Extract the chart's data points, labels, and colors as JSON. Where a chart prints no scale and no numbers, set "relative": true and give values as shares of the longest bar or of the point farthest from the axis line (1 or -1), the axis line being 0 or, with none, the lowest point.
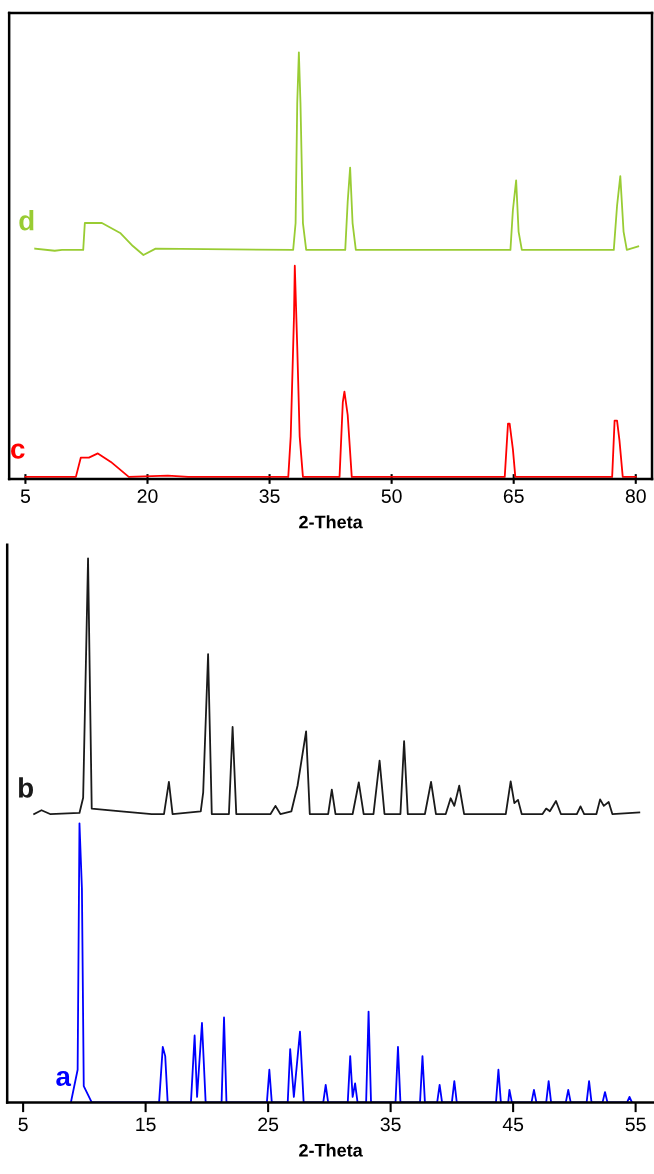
{
  "chart_data": [
    {
      "type": "line",
      "relative": true,
      "xlabel": "2-Theta",
      "xlim": [
        3,
        82
      ],
      "xticks": [
        5,
        20,
        35,
        50,
        65,
        80
      ],
      "series": [
        {
          "name": "d",
          "color": "#99cc33",
          "x": [
            6.2,
            8.6,
            9.5,
            12.1,
            12.3,
            14.4,
            16.7,
            18.2,
            19.5,
            21,
            37.9,
            38.2,
            38.4,
            38.6,
            38.8,
            39.1,
            39.5,
            44.3,
            44.6,
            44.9,
            45.2,
            45.6,
            64.6,
            64.9,
            65.3,
            65.6,
            66.0,
            77.3,
            77.7,
            78.1,
            78.5,
            78.9,
            80.3
          ],
          "values": [
            0.54,
            0.535,
            0.537,
            0.537,
            0.6,
            0.6,
            0.576,
            0.546,
            0.525,
            0.54,
            0.537,
            0.6,
            0.88,
            1.0,
            0.88,
            0.6,
            0.537,
            0.537,
            0.65,
            0.73,
            0.6,
            0.537,
            0.537,
            0.63,
            0.7,
            0.58,
            0.537,
            0.537,
            0.64,
            0.71,
            0.58,
            0.537,
            0.545
          ]
        },
        {
          "name": "c",
          "color": "#ff0000",
          "x": [
            5,
            11.2,
            11.8,
            12.8,
            13.9,
            15.5,
            17.7,
            22.5,
            25,
            37.3,
            37.6,
            38.0,
            38.1,
            38.4,
            38.7,
            39.1,
            43.6,
            44.0,
            44.2,
            44.6,
            45.1,
            63.9,
            64.3,
            64.5,
            64.9,
            65.2,
            77.1,
            77.4,
            77.7,
            78.0,
            78.4,
            80
          ],
          "values": [
            0.005,
            0.005,
            0.05,
            0.05,
            0.06,
            0.04,
            0.005,
            0.008,
            0.005,
            0.005,
            0.1,
            0.38,
            0.5,
            0.31,
            0.1,
            0.005,
            0.005,
            0.18,
            0.205,
            0.15,
            0.005,
            0.005,
            0.13,
            0.13,
            0.07,
            0.005,
            0.005,
            0.137,
            0.137,
            0.09,
            0.005,
            0.005
          ]
        }
      ]
    },
    {
      "type": "line",
      "relative": true,
      "xlabel": "2-Theta",
      "xlim": [
        3.7,
        56.5
      ],
      "xticks": [
        5,
        15,
        25,
        35,
        45,
        55
      ],
      "series": [
        {
          "name": "b",
          "color": "#1a1a1a",
          "x": [
            5.9,
            6.5,
            7.2,
            9.6,
            9.9,
            10.3,
            10.6,
            13,
            15.5,
            16.5,
            16.9,
            17.2,
            19.5,
            19.7,
            20.1,
            20.4,
            21.8,
            22.1,
            22.4,
            25.2,
            25.6,
            26.0,
            26.9,
            27.4,
            28.1,
            28.4,
            29.9,
            30.2,
            30.5,
            31.9,
            32.4,
            32.8,
            33.6,
            34.1,
            34.5,
            35.8,
            36.1,
            36.4,
            37.8,
            38.3,
            38.7,
            39.5,
            39.9,
            40.2,
            40.6,
            41.0,
            44.4,
            44.8,
            45.1,
            45.4,
            45.7,
            47.4,
            47.7,
            48.0,
            48.5,
            48.9,
            50.2,
            50.5,
            50.8,
            51.8,
            52.1,
            52.4,
            52.8,
            53.1,
            55.3
          ],
          "values": [
            0.53,
            0.537,
            0.53,
            0.532,
            0.56,
            1.0,
            0.54,
            0.535,
            0.53,
            0.53,
            0.589,
            0.53,
            0.535,
            0.57,
            0.824,
            0.53,
            0.53,
            0.69,
            0.53,
            0.53,
            0.545,
            0.53,
            0.535,
            0.582,
            0.682,
            0.53,
            0.53,
            0.575,
            0.53,
            0.53,
            0.588,
            0.53,
            0.53,
            0.628,
            0.53,
            0.53,
            0.664,
            0.53,
            0.53,
            0.589,
            0.53,
            0.53,
            0.559,
            0.545,
            0.582,
            0.53,
            0.53,
            0.59,
            0.55,
            0.556,
            0.53,
            0.53,
            0.54,
            0.535,
            0.554,
            0.53,
            0.53,
            0.544,
            0.53,
            0.53,
            0.557,
            0.545,
            0.552,
            0.53,
            0.533
          ]
        },
        {
          "name": "a",
          "color": "#0000ff",
          "x": [
            8.9,
            9.45,
            9.6,
            9.8,
            9.95,
            10.6,
            16.1,
            16.4,
            16.6,
            16.8,
            18.7,
            19.0,
            19.2,
            19.6,
            19.9,
            21.2,
            21.4,
            21.6,
            24.9,
            25.1,
            25.3,
            26.6,
            26.8,
            27.1,
            27.6,
            27.9,
            29.5,
            29.7,
            29.9,
            31.5,
            31.7,
            31.9,
            32.1,
            32.3,
            33.0,
            33.2,
            33.4,
            35.4,
            35.6,
            35.8,
            37.4,
            37.6,
            37.8,
            38.8,
            39.0,
            39.2,
            40.0,
            40.2,
            40.4,
            43.6,
            43.8,
            44.0,
            44.6,
            44.7,
            44.9,
            46.5,
            46.7,
            46.9,
            47.7,
            47.9,
            48.1,
            49.3,
            49.5,
            49.7,
            51.0,
            51.2,
            51.4,
            52.3,
            52.5,
            52.7,
            54.3,
            54.5,
            54.7
          ],
          "values": [
            0,
            0.06,
            0.513,
            0.393,
            0.03,
            0,
            0,
            0.102,
            0.085,
            0,
            0,
            0.123,
            0.01,
            0.146,
            0,
            0,
            0.156,
            0,
            0,
            0.06,
            0,
            0,
            0.098,
            0.01,
            0.13,
            0,
            0,
            0.032,
            0,
            0,
            0.085,
            0.01,
            0.035,
            0,
            0,
            0.167,
            0,
            0,
            0.102,
            0,
            0,
            0.085,
            0,
            0,
            0.032,
            0,
            0,
            0.039,
            0,
            0,
            0.06,
            0,
            0,
            0.023,
            0,
            0,
            0.023,
            0,
            0,
            0.039,
            0,
            0,
            0.023,
            0,
            0,
            0.039,
            0,
            0,
            0.019,
            0,
            0,
            0.01,
            0
          ]
        }
      ]
    }
  ]
}
